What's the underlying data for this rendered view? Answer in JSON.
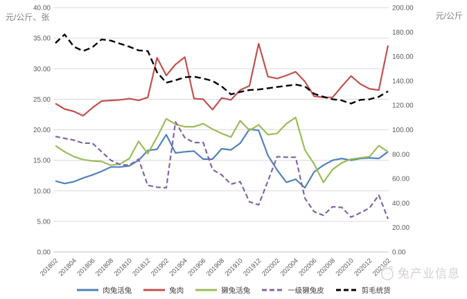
{
  "watermark": {
    "text": "兔产业信息",
    "icon": "rabbit-logo"
  },
  "chart_data": {
    "type": "line",
    "title": "",
    "grid": true,
    "legend_position": "bottom",
    "left_axis": {
      "title": "元/公斤、张",
      "min": 0,
      "max": 40,
      "step": 5,
      "tick_labels": [
        "0.00",
        "5.00",
        "10.00",
        "15.00",
        "20.00",
        "25.00",
        "30.00",
        "35.00",
        "40.00"
      ]
    },
    "right_axis": {
      "title": "元/公斤",
      "min": 0,
      "max": 200,
      "step": 20,
      "tick_labels": [
        "0.00",
        "20.00",
        "40.00",
        "60.00",
        "80.00",
        "100.00",
        "120.00",
        "140.00",
        "160.00",
        "180.00",
        "200.00"
      ]
    },
    "x": [
      "201802",
      "201803",
      "201804",
      "201805",
      "201806",
      "201807",
      "201808",
      "201809",
      "201810",
      "201811",
      "201812",
      "201901",
      "201902",
      "201903",
      "201904",
      "201905",
      "201906",
      "201907",
      "201908",
      "201909",
      "201910",
      "201911",
      "201912",
      "202001",
      "202002",
      "202003",
      "202004",
      "202005",
      "202006",
      "202007",
      "202008",
      "202009",
      "202010",
      "202011",
      "202012",
      "202101",
      "202102"
    ],
    "x_tick_labels": [
      "201802",
      "201804",
      "201806",
      "201808",
      "201810",
      "201812",
      "201902",
      "201904",
      "201906",
      "201908",
      "201910",
      "201912",
      "202002",
      "202004",
      "202006",
      "202008",
      "202010",
      "202012",
      "202102"
    ],
    "series": [
      {
        "name": "肉兔活兔",
        "color": "#4F81BD",
        "style": "solid",
        "axis": "left",
        "values": [
          11.6,
          11.2,
          11.5,
          12.1,
          12.6,
          13.2,
          13.9,
          13.9,
          14.1,
          15.0,
          16.6,
          16.8,
          19.2,
          16.2,
          16.4,
          16.5,
          15.2,
          15.2,
          16.9,
          16.7,
          17.8,
          20.1,
          19.9,
          15.8,
          13.4,
          11.4,
          11.9,
          10.5,
          13.1,
          14.2,
          15.0,
          15.3,
          15.0,
          15.3,
          15.4,
          15.3,
          16.4
        ]
      },
      {
        "name": "兔肉",
        "color": "#C0504D",
        "style": "solid",
        "axis": "left",
        "values": [
          24.3,
          23.4,
          23.0,
          22.3,
          23.6,
          24.7,
          24.8,
          24.9,
          25.1,
          24.8,
          25.3,
          31.8,
          28.9,
          30.7,
          31.9,
          25.1,
          25.0,
          23.3,
          25.2,
          24.9,
          26.5,
          27.2,
          34.1,
          28.7,
          28.4,
          28.9,
          29.5,
          27.9,
          25.5,
          25.3,
          25.3,
          27.1,
          28.8,
          27.5,
          26.7,
          26.5,
          33.8
        ]
      },
      {
        "name": "獭兔活兔",
        "color": "#9BBB59",
        "style": "solid",
        "axis": "left",
        "values": [
          17.4,
          16.4,
          15.6,
          15.1,
          14.9,
          14.8,
          14.2,
          14.4,
          15.3,
          18.1,
          16.1,
          18.8,
          21.8,
          20.9,
          20.5,
          20.5,
          21.0,
          20.1,
          19.4,
          18.8,
          21.5,
          19.9,
          20.8,
          19.2,
          19.4,
          21.0,
          22.0,
          16.7,
          14.4,
          11.4,
          13.5,
          14.6,
          15.2,
          15.4,
          15.6,
          17.4,
          16.4
        ]
      },
      {
        "name": "一级獭兔皮",
        "color": "#8064A2",
        "style": "dashed",
        "axis": "left",
        "values": [
          18.9,
          18.6,
          18.3,
          17.8,
          17.8,
          16.4,
          15.0,
          14.3,
          14.2,
          15.2,
          10.9,
          10.6,
          10.5,
          21.3,
          18.7,
          17.9,
          17.9,
          13.5,
          12.6,
          11.1,
          11.5,
          8.2,
          7.7,
          11.6,
          15.6,
          15.5,
          15.5,
          8.8,
          6.6,
          6.0,
          7.4,
          7.3,
          5.7,
          6.4,
          7.2,
          9.3,
          5.4
        ]
      },
      {
        "name": "剪毛统货",
        "color": "#000000",
        "style": "dashed",
        "axis": "right",
        "values": [
          171,
          178,
          168,
          164.5,
          167.5,
          174,
          173,
          170.5,
          168,
          165,
          164.5,
          147,
          138.5,
          140.5,
          143,
          143.5,
          142,
          140,
          135.5,
          129,
          131,
          132.5,
          133,
          134,
          135,
          136,
          137,
          135.5,
          129.5,
          127,
          125,
          124,
          121.5,
          124.5,
          125,
          127,
          131.5
        ]
      }
    ]
  }
}
